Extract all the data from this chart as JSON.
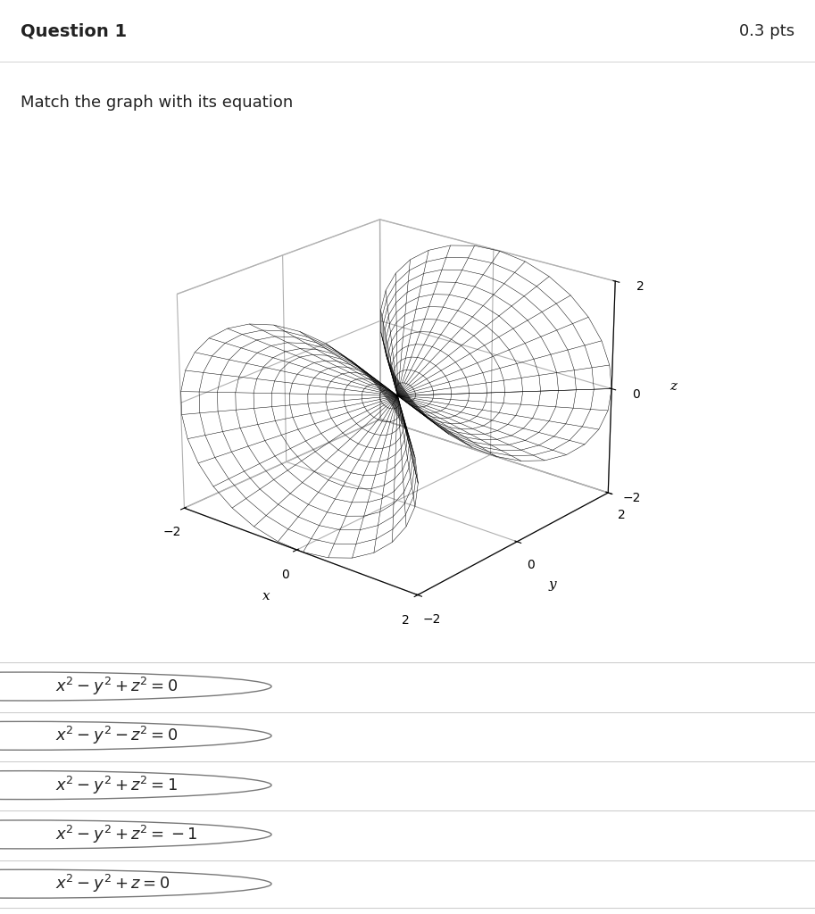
{
  "title": "Question 1",
  "pts": "0.3 pts",
  "subtitle": "Match the graph with its equation",
  "xlabel": "x",
  "ylabel": "y",
  "zlabel": "z",
  "xlim": [
    -2,
    2
  ],
  "ylim": [
    -2,
    2
  ],
  "zlim": [
    -2,
    2
  ],
  "axis_ticks": [
    -2,
    0,
    2
  ],
  "options": [
    "$x^2 - y^2 + z^2 = 0$",
    "$x^2 - y^2 - z^2 = 0$",
    "$x^2 - y^2 + z^2 = 1$",
    "$x^2 - y^2 + z^2 = -1$",
    "$x^2 - y^2 + z = 0$"
  ],
  "surface_color": "black",
  "background_color": "#ffffff",
  "elev": 22,
  "azim": -50,
  "n_theta": 30,
  "n_r": 25
}
